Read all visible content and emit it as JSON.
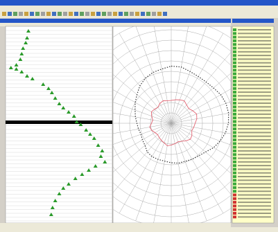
{
  "chart_data": [
    {
      "type": "strip",
      "xlim": [
        0,
        155
      ],
      "ylim": [
        0,
        280
      ],
      "x": [
        32,
        30,
        28,
        24,
        22,
        20,
        14,
        6,
        14,
        22,
        30,
        38,
        54,
        62,
        67,
        72,
        78,
        84,
        92,
        100,
        104,
        110,
        118,
        124,
        130,
        136,
        142,
        140,
        146,
        132,
        122,
        112,
        102,
        92,
        84,
        78,
        72,
        68,
        66
      ],
      "y": [
        5,
        15,
        22,
        30,
        38,
        46,
        54,
        58,
        60,
        64,
        70,
        74,
        82,
        88,
        94,
        102,
        110,
        116,
        122,
        128,
        136,
        140,
        148,
        154,
        160,
        170,
        178,
        186,
        194,
        200,
        206,
        212,
        218,
        226,
        232,
        240,
        250,
        260,
        270
      ],
      "color": "#2a9a2a"
    },
    {
      "type": "polar",
      "x": [
        0,
        10,
        20,
        30,
        40,
        50,
        60,
        70,
        80,
        90,
        100,
        110,
        120,
        130,
        140,
        150,
        160,
        170,
        180,
        190,
        200,
        210,
        220,
        230,
        240,
        250,
        260,
        270,
        280,
        290,
        300,
        310,
        320,
        330,
        340,
        350
      ],
      "rlim": [
        0,
        10
      ],
      "rticks": [
        1,
        2,
        3,
        4,
        5,
        6,
        7,
        8,
        9,
        10
      ],
      "series": [
        {
          "color": "#333333",
          "values": [
            5.5,
            5.5,
            5.3,
            5.2,
            5.2,
            5.3,
            5.5,
            5.6,
            5.6,
            5.5,
            5.3,
            5.0,
            4.7,
            4.3,
            4.1,
            4.0,
            3.9,
            3.9,
            3.8,
            3.7,
            3.7,
            3.7,
            3.6,
            3.3,
            3.2,
            3.1,
            3.2,
            3.3,
            3.5,
            3.7,
            4.0,
            4.3,
            4.7,
            5.0,
            5.2,
            5.3
          ]
        },
        {
          "color": "#e05060",
          "values": [
            2.2,
            2.3,
            2.4,
            2.5,
            2.3,
            2.2,
            2.4,
            2.6,
            2.5,
            2.3,
            2.2,
            2.1,
            2.3,
            2.4,
            2.2,
            2.0,
            1.9,
            2.0,
            2.1,
            2.2,
            2.0,
            1.9,
            1.8,
            1.7,
            1.8,
            2.0,
            2.1,
            1.9,
            1.8,
            2.0,
            2.2,
            2.1,
            2.0,
            2.2,
            2.3,
            2.2
          ]
        }
      ]
    }
  ]
}
